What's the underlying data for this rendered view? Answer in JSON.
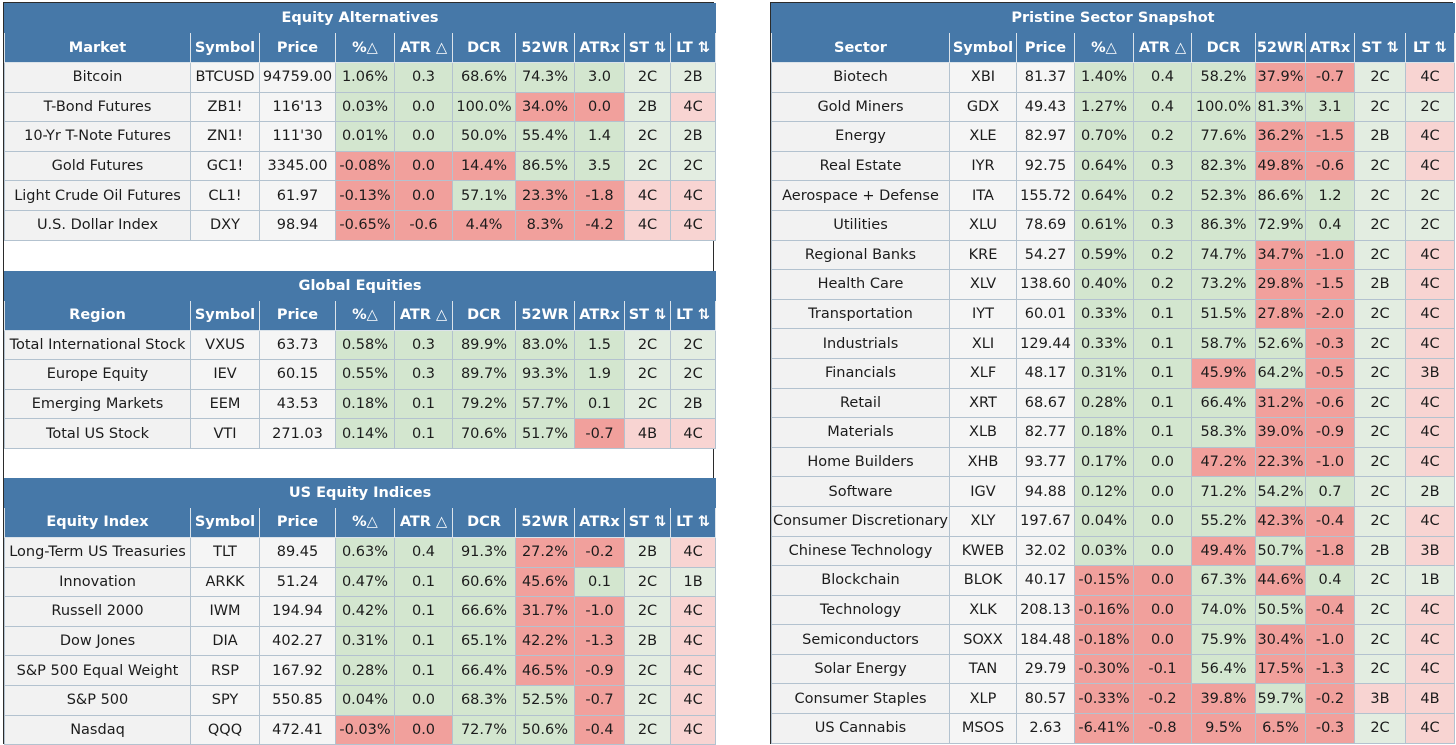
{
  "colors": {
    "header": "#4678a8",
    "positive": "#d3e6cf",
    "positive_light": "#e3ede1",
    "negative": "#f1a09c",
    "negative_light": "#f8d4d2"
  },
  "sections": [
    {
      "title": "Equity Alternatives",
      "columns": [
        "Market",
        "Symbol",
        "Price",
        "%△",
        "ATR △",
        "DCR",
        "52WR",
        "ATRx",
        "ST ⇅",
        "LT ⇅"
      ],
      "rows": [
        [
          "Bitcoin",
          "BTCUSD",
          "94759.00",
          "1.06%",
          "0.3",
          "68.6%",
          "74.3%",
          "3.0",
          "2C",
          "2B"
        ],
        [
          "T-Bond Futures",
          "ZB1!",
          "116'13",
          "0.03%",
          "0.0",
          "100.0%",
          "34.0%",
          "0.0",
          "2B",
          "4C"
        ],
        [
          "10-Yr T-Note Futures",
          "ZN1!",
          "111'30",
          "0.01%",
          "0.0",
          "50.0%",
          "55.4%",
          "1.4",
          "2C",
          "2B"
        ],
        [
          "Gold Futures",
          "GC1!",
          "3345.00",
          "-0.08%",
          "0.0",
          "14.4%",
          "86.5%",
          "3.5",
          "2C",
          "2C"
        ],
        [
          "Light Crude Oil Futures",
          "CL1!",
          "61.97",
          "-0.13%",
          "0.0",
          "57.1%",
          "23.3%",
          "-1.8",
          "4C",
          "4C"
        ],
        [
          "U.S. Dollar Index",
          "DXY",
          "98.94",
          "-0.65%",
          "-0.6",
          "4.4%",
          "8.3%",
          "-4.2",
          "4C",
          "4C"
        ]
      ],
      "shading": [
        [
          "name",
          "plain",
          "plain",
          "pos",
          "pos",
          "pos",
          "pos",
          "pos",
          "pneu",
          "pneu"
        ],
        [
          "name",
          "plain",
          "plain",
          "pos",
          "pos",
          "pos",
          "neg",
          "neg",
          "pneu",
          "nneu"
        ],
        [
          "name",
          "plain",
          "plain",
          "pos",
          "pos",
          "pos",
          "pos",
          "pos",
          "pneu",
          "pneu"
        ],
        [
          "name",
          "plain",
          "plain",
          "neg",
          "neg",
          "neg",
          "pos",
          "pos",
          "pneu",
          "pneu"
        ],
        [
          "name",
          "plain",
          "plain",
          "neg",
          "neg",
          "pos",
          "neg",
          "neg",
          "nneu",
          "nneu"
        ],
        [
          "name",
          "plain",
          "plain",
          "neg",
          "neg",
          "neg",
          "neg",
          "neg",
          "nneu",
          "nneu"
        ]
      ]
    },
    {
      "title": "Global Equities",
      "columns": [
        "Region",
        "Symbol",
        "Price",
        "%△",
        "ATR △",
        "DCR",
        "52WR",
        "ATRx",
        "ST ⇅",
        "LT ⇅"
      ],
      "rows": [
        [
          "Total International Stock",
          "VXUS",
          "63.73",
          "0.58%",
          "0.3",
          "89.9%",
          "83.0%",
          "1.5",
          "2C",
          "2C"
        ],
        [
          "Europe Equity",
          "IEV",
          "60.15",
          "0.55%",
          "0.3",
          "89.7%",
          "93.3%",
          "1.9",
          "2C",
          "2C"
        ],
        [
          "Emerging Markets",
          "EEM",
          "43.53",
          "0.18%",
          "0.1",
          "79.2%",
          "57.7%",
          "0.1",
          "2C",
          "2B"
        ],
        [
          "Total US Stock",
          "VTI",
          "271.03",
          "0.14%",
          "0.1",
          "70.6%",
          "51.7%",
          "-0.7",
          "4B",
          "4C"
        ]
      ],
      "shading": [
        [
          "name",
          "plain",
          "plain",
          "pos",
          "pos",
          "pos",
          "pos",
          "pos",
          "pneu",
          "pneu"
        ],
        [
          "name",
          "plain",
          "plain",
          "pos",
          "pos",
          "pos",
          "pos",
          "pos",
          "pneu",
          "pneu"
        ],
        [
          "name",
          "plain",
          "plain",
          "pos",
          "pos",
          "pos",
          "pos",
          "pos",
          "pneu",
          "pneu"
        ],
        [
          "name",
          "plain",
          "plain",
          "pos",
          "pos",
          "pos",
          "pos",
          "neg",
          "nneu",
          "nneu"
        ]
      ]
    },
    {
      "title": "US Equity Indices",
      "columns": [
        "Equity Index",
        "Symbol",
        "Price",
        "%△",
        "ATR △",
        "DCR",
        "52WR",
        "ATRx",
        "ST ⇅",
        "LT ⇅"
      ],
      "rows": [
        [
          "Long-Term US Treasuries",
          "TLT",
          "89.45",
          "0.63%",
          "0.4",
          "91.3%",
          "27.2%",
          "-0.2",
          "2B",
          "4C"
        ],
        [
          "Innovation",
          "ARKK",
          "51.24",
          "0.47%",
          "0.1",
          "60.6%",
          "45.6%",
          "0.1",
          "2C",
          "1B"
        ],
        [
          "Russell 2000",
          "IWM",
          "194.94",
          "0.42%",
          "0.1",
          "66.6%",
          "31.7%",
          "-1.0",
          "2C",
          "4C"
        ],
        [
          "Dow Jones",
          "DIA",
          "402.27",
          "0.31%",
          "0.1",
          "65.1%",
          "42.2%",
          "-1.3",
          "2B",
          "4C"
        ],
        [
          "S&P 500 Equal Weight",
          "RSP",
          "167.92",
          "0.28%",
          "0.1",
          "66.4%",
          "46.5%",
          "-0.9",
          "2C",
          "4C"
        ],
        [
          "S&P 500",
          "SPY",
          "550.85",
          "0.04%",
          "0.0",
          "68.3%",
          "52.5%",
          "-0.7",
          "2C",
          "4C"
        ],
        [
          "Nasdaq",
          "QQQ",
          "472.41",
          "-0.03%",
          "0.0",
          "72.7%",
          "50.6%",
          "-0.4",
          "2C",
          "4C"
        ]
      ],
      "shading": [
        [
          "name",
          "plain",
          "plain",
          "pos",
          "pos",
          "pos",
          "neg",
          "neg",
          "pneu",
          "nneu"
        ],
        [
          "name",
          "plain",
          "plain",
          "pos",
          "pos",
          "pos",
          "neg",
          "pos",
          "pneu",
          "pneu"
        ],
        [
          "name",
          "plain",
          "plain",
          "pos",
          "pos",
          "pos",
          "neg",
          "neg",
          "pneu",
          "nneu"
        ],
        [
          "name",
          "plain",
          "plain",
          "pos",
          "pos",
          "pos",
          "neg",
          "neg",
          "pneu",
          "nneu"
        ],
        [
          "name",
          "plain",
          "plain",
          "pos",
          "pos",
          "pos",
          "neg",
          "neg",
          "pneu",
          "nneu"
        ],
        [
          "name",
          "plain",
          "plain",
          "pos",
          "pos",
          "pos",
          "pos",
          "neg",
          "pneu",
          "nneu"
        ],
        [
          "name",
          "plain",
          "plain",
          "neg",
          "neg",
          "pos",
          "pos",
          "neg",
          "pneu",
          "nneu"
        ]
      ]
    },
    {
      "title": "Pristine Sector Snapshot",
      "columns": [
        "Sector",
        "Symbol",
        "Price",
        "%△",
        "ATR △",
        "DCR",
        "52WR",
        "ATRx",
        "ST ⇅",
        "LT ⇅"
      ],
      "rows": [
        [
          "Biotech",
          "XBI",
          "81.37",
          "1.40%",
          "0.4",
          "58.2%",
          "37.9%",
          "-0.7",
          "2C",
          "4C"
        ],
        [
          "Gold Miners",
          "GDX",
          "49.43",
          "1.27%",
          "0.4",
          "100.0%",
          "81.3%",
          "3.1",
          "2C",
          "2C"
        ],
        [
          "Energy",
          "XLE",
          "82.97",
          "0.70%",
          "0.2",
          "77.6%",
          "36.2%",
          "-1.5",
          "2B",
          "4C"
        ],
        [
          "Real Estate",
          "IYR",
          "92.75",
          "0.64%",
          "0.3",
          "82.3%",
          "49.8%",
          "-0.6",
          "2C",
          "4C"
        ],
        [
          "Aerospace + Defense",
          "ITA",
          "155.72",
          "0.64%",
          "0.2",
          "52.3%",
          "86.6%",
          "1.2",
          "2C",
          "2C"
        ],
        [
          "Utilities",
          "XLU",
          "78.69",
          "0.61%",
          "0.3",
          "86.3%",
          "72.9%",
          "0.4",
          "2C",
          "2C"
        ],
        [
          "Regional Banks",
          "KRE",
          "54.27",
          "0.59%",
          "0.2",
          "74.7%",
          "34.7%",
          "-1.0",
          "2C",
          "4C"
        ],
        [
          "Health Care",
          "XLV",
          "138.60",
          "0.40%",
          "0.2",
          "73.2%",
          "29.8%",
          "-1.5",
          "2B",
          "4C"
        ],
        [
          "Transportation",
          "IYT",
          "60.01",
          "0.33%",
          "0.1",
          "51.5%",
          "27.8%",
          "-2.0",
          "2C",
          "4C"
        ],
        [
          "Industrials",
          "XLI",
          "129.44",
          "0.33%",
          "0.1",
          "58.7%",
          "52.6%",
          "-0.3",
          "2C",
          "4C"
        ],
        [
          "Financials",
          "XLF",
          "48.17",
          "0.31%",
          "0.1",
          "45.9%",
          "64.2%",
          "-0.5",
          "2C",
          "3B"
        ],
        [
          "Retail",
          "XRT",
          "68.67",
          "0.28%",
          "0.1",
          "66.4%",
          "31.2%",
          "-0.6",
          "2C",
          "4C"
        ],
        [
          "Materials",
          "XLB",
          "82.77",
          "0.18%",
          "0.1",
          "58.3%",
          "39.0%",
          "-0.9",
          "2C",
          "4C"
        ],
        [
          "Home Builders",
          "XHB",
          "93.77",
          "0.17%",
          "0.0",
          "47.2%",
          "22.3%",
          "-1.0",
          "2C",
          "4C"
        ],
        [
          "Software",
          "IGV",
          "94.88",
          "0.12%",
          "0.0",
          "71.2%",
          "54.2%",
          "0.7",
          "2C",
          "2B"
        ],
        [
          "Consumer Discretionary",
          "XLY",
          "197.67",
          "0.04%",
          "0.0",
          "55.2%",
          "42.3%",
          "-0.4",
          "2C",
          "4C"
        ],
        [
          "Chinese Technology",
          "KWEB",
          "32.02",
          "0.03%",
          "0.0",
          "49.4%",
          "50.7%",
          "-1.8",
          "2B",
          "3B"
        ],
        [
          "Blockchain",
          "BLOK",
          "40.17",
          "-0.15%",
          "0.0",
          "67.3%",
          "44.6%",
          "0.4",
          "2C",
          "1B"
        ],
        [
          "Technology",
          "XLK",
          "208.13",
          "-0.16%",
          "0.0",
          "74.0%",
          "50.5%",
          "-0.4",
          "2C",
          "4C"
        ],
        [
          "Semiconductors",
          "SOXX",
          "184.48",
          "-0.18%",
          "0.0",
          "75.9%",
          "30.4%",
          "-1.0",
          "2C",
          "4C"
        ],
        [
          "Solar Energy",
          "TAN",
          "29.79",
          "-0.30%",
          "-0.1",
          "56.4%",
          "17.5%",
          "-1.3",
          "2C",
          "4C"
        ],
        [
          "Consumer Staples",
          "XLP",
          "80.57",
          "-0.33%",
          "-0.2",
          "39.8%",
          "59.7%",
          "-0.2",
          "3B",
          "4B"
        ],
        [
          "US Cannabis",
          "MSOS",
          "2.63",
          "-6.41%",
          "-0.8",
          "9.5%",
          "6.5%",
          "-0.3",
          "2C",
          "4C"
        ]
      ],
      "shading": [
        [
          "name",
          "plain",
          "plain",
          "pos",
          "pos",
          "pos",
          "neg",
          "neg",
          "pneu",
          "nneu"
        ],
        [
          "name",
          "plain",
          "plain",
          "pos",
          "pos",
          "pos",
          "pos",
          "pos",
          "pneu",
          "pneu"
        ],
        [
          "name",
          "plain",
          "plain",
          "pos",
          "pos",
          "pos",
          "neg",
          "neg",
          "pneu",
          "nneu"
        ],
        [
          "name",
          "plain",
          "plain",
          "pos",
          "pos",
          "pos",
          "neg",
          "neg",
          "pneu",
          "nneu"
        ],
        [
          "name",
          "plain",
          "plain",
          "pos",
          "pos",
          "pos",
          "pos",
          "pos",
          "pneu",
          "pneu"
        ],
        [
          "name",
          "plain",
          "plain",
          "pos",
          "pos",
          "pos",
          "pos",
          "pos",
          "pneu",
          "pneu"
        ],
        [
          "name",
          "plain",
          "plain",
          "pos",
          "pos",
          "pos",
          "neg",
          "neg",
          "pneu",
          "nneu"
        ],
        [
          "name",
          "plain",
          "plain",
          "pos",
          "pos",
          "pos",
          "neg",
          "neg",
          "pneu",
          "nneu"
        ],
        [
          "name",
          "plain",
          "plain",
          "pos",
          "pos",
          "pos",
          "neg",
          "neg",
          "pneu",
          "nneu"
        ],
        [
          "name",
          "plain",
          "plain",
          "pos",
          "pos",
          "pos",
          "pos",
          "neg",
          "pneu",
          "nneu"
        ],
        [
          "name",
          "plain",
          "plain",
          "pos",
          "pos",
          "neg",
          "pos",
          "neg",
          "pneu",
          "nneu"
        ],
        [
          "name",
          "plain",
          "plain",
          "pos",
          "pos",
          "pos",
          "neg",
          "neg",
          "pneu",
          "nneu"
        ],
        [
          "name",
          "plain",
          "plain",
          "pos",
          "pos",
          "pos",
          "neg",
          "neg",
          "pneu",
          "nneu"
        ],
        [
          "name",
          "plain",
          "plain",
          "pos",
          "pos",
          "neg",
          "neg",
          "neg",
          "pneu",
          "nneu"
        ],
        [
          "name",
          "plain",
          "plain",
          "pos",
          "pos",
          "pos",
          "pos",
          "pos",
          "pneu",
          "pneu"
        ],
        [
          "name",
          "plain",
          "plain",
          "pos",
          "pos",
          "pos",
          "neg",
          "neg",
          "pneu",
          "nneu"
        ],
        [
          "name",
          "plain",
          "plain",
          "pos",
          "pos",
          "neg",
          "pos",
          "neg",
          "pneu",
          "nneu"
        ],
        [
          "name",
          "plain",
          "plain",
          "neg",
          "neg",
          "pos",
          "neg",
          "pos",
          "pneu",
          "pneu"
        ],
        [
          "name",
          "plain",
          "plain",
          "neg",
          "neg",
          "pos",
          "pos",
          "neg",
          "pneu",
          "nneu"
        ],
        [
          "name",
          "plain",
          "plain",
          "neg",
          "neg",
          "pos",
          "neg",
          "neg",
          "pneu",
          "nneu"
        ],
        [
          "name",
          "plain",
          "plain",
          "neg",
          "neg",
          "pos",
          "neg",
          "neg",
          "pneu",
          "nneu"
        ],
        [
          "name",
          "plain",
          "plain",
          "neg",
          "neg",
          "neg",
          "pos",
          "neg",
          "nneu",
          "nneu"
        ],
        [
          "name",
          "plain",
          "plain",
          "neg",
          "neg",
          "neg",
          "neg",
          "neg",
          "pneu",
          "nneu"
        ]
      ]
    }
  ]
}
